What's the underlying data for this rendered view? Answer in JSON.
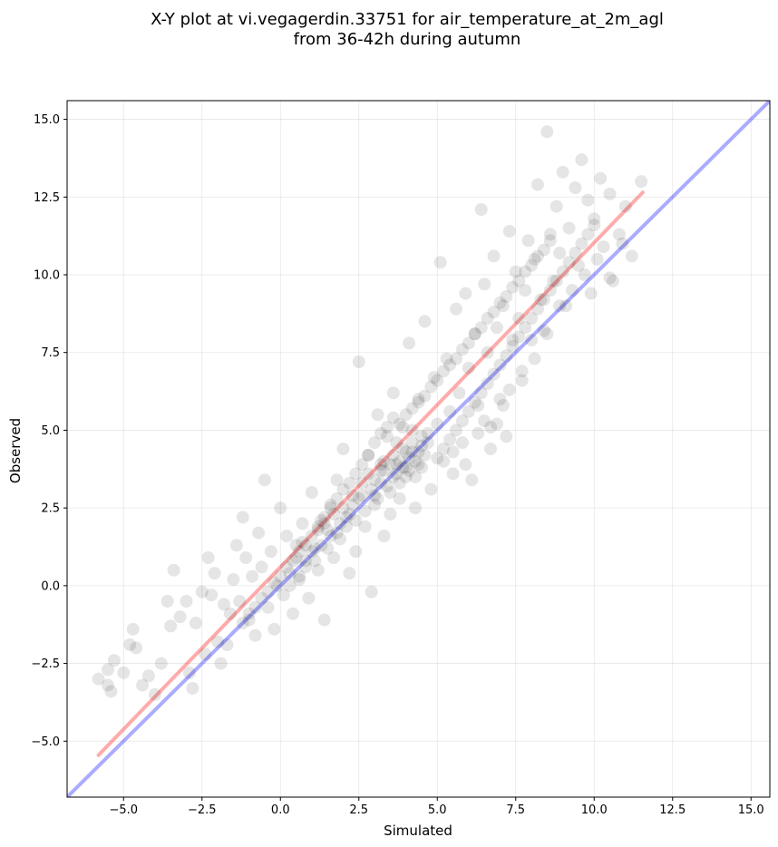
{
  "chart_data": {
    "type": "scatter",
    "title_lines": [
      "X-Y plot at vi.vegagerdin.33751 for air_temperature_at_2m_agl",
      "from 36-42h during autumn"
    ],
    "xlabel": "Simulated",
    "ylabel": "Observed",
    "xlim": [
      -6.8,
      15.6
    ],
    "ylim": [
      -6.8,
      15.6
    ],
    "xticks": [
      -5.0,
      -2.5,
      0.0,
      2.5,
      5.0,
      7.5,
      10.0,
      12.5,
      15.0
    ],
    "yticks": [
      -5.0,
      -2.5,
      0.0,
      2.5,
      5.0,
      7.5,
      10.0,
      12.5,
      15.0
    ],
    "xtick_labels": [
      "−5.0",
      "−2.5",
      "0.0",
      "2.5",
      "5.0",
      "7.5",
      "10.0",
      "12.5",
      "15.0"
    ],
    "ytick_labels": [
      "−5.0",
      "−2.5",
      "0.0",
      "2.5",
      "5.0",
      "7.5",
      "10.0",
      "12.5",
      "15.0"
    ],
    "grid": true,
    "point_color": "#000000",
    "point_alpha": 0.1,
    "lines": [
      {
        "role": "identity",
        "color": "#0000ff",
        "alpha": 0.33,
        "x": [
          -6.8,
          15.6
        ],
        "y": [
          -6.8,
          15.6
        ]
      },
      {
        "role": "fit",
        "color": "#ff0000",
        "alpha": 0.33,
        "x": [
          -5.8,
          11.55
        ],
        "y": [
          -5.45,
          12.65
        ]
      }
    ],
    "points": [
      [
        -5.8,
        -3.0
      ],
      [
        -5.5,
        -3.2
      ],
      [
        -5.4,
        -3.4
      ],
      [
        -5.3,
        -2.4
      ],
      [
        -5.5,
        -2.7
      ],
      [
        -5.0,
        -2.8
      ],
      [
        -4.8,
        -1.9
      ],
      [
        -4.7,
        -1.4
      ],
      [
        -4.6,
        -2.0
      ],
      [
        -4.4,
        -3.2
      ],
      [
        -4.2,
        -2.9
      ],
      [
        -4.0,
        -3.5
      ],
      [
        -3.8,
        -2.5
      ],
      [
        -3.6,
        -0.5
      ],
      [
        -3.5,
        -1.3
      ],
      [
        -3.4,
        0.5
      ],
      [
        -3.2,
        -1.0
      ],
      [
        -3.0,
        -0.5
      ],
      [
        -2.9,
        -2.8
      ],
      [
        -2.8,
        -3.3
      ],
      [
        -2.7,
        -1.2
      ],
      [
        -2.5,
        -0.2
      ],
      [
        -2.4,
        -2.2
      ],
      [
        -2.3,
        0.9
      ],
      [
        -2.2,
        -0.3
      ],
      [
        -2.1,
        0.4
      ],
      [
        -2.0,
        -1.8
      ],
      [
        -1.9,
        -2.5
      ],
      [
        -1.8,
        -0.6
      ],
      [
        -1.7,
        -1.9
      ],
      [
        -1.6,
        -0.9
      ],
      [
        -1.5,
        0.2
      ],
      [
        -1.4,
        1.3
      ],
      [
        -1.3,
        -0.5
      ],
      [
        -1.2,
        2.2
      ],
      [
        -1.1,
        0.9
      ],
      [
        -1.0,
        -1.1
      ],
      [
        -0.9,
        0.3
      ],
      [
        -0.8,
        -1.6
      ],
      [
        -0.7,
        1.7
      ],
      [
        -0.6,
        0.6
      ],
      [
        -0.5,
        3.4
      ],
      [
        -0.4,
        -0.7
      ],
      [
        -0.3,
        1.1
      ],
      [
        -0.2,
        -1.4
      ],
      [
        -0.1,
        0.0
      ],
      [
        0.0,
        2.5
      ],
      [
        0.1,
        -0.3
      ],
      [
        0.2,
        1.6
      ],
      [
        0.3,
        0.4
      ],
      [
        0.4,
        -0.9
      ],
      [
        0.5,
        1.3
      ],
      [
        0.6,
        0.2
      ],
      [
        0.7,
        2.0
      ],
      [
        0.8,
        0.8
      ],
      [
        0.9,
        -0.4
      ],
      [
        1.0,
        3.0
      ],
      [
        1.1,
        1.2
      ],
      [
        1.2,
        0.5
      ],
      [
        1.3,
        2.1
      ],
      [
        1.4,
        -1.1
      ],
      [
        1.5,
        1.8
      ],
      [
        1.6,
        2.6
      ],
      [
        1.7,
        0.9
      ],
      [
        1.8,
        3.4
      ],
      [
        1.9,
        1.5
      ],
      [
        2.0,
        4.4
      ],
      [
        2.1,
        2.2
      ],
      [
        2.2,
        0.4
      ],
      [
        2.3,
        2.9
      ],
      [
        2.4,
        1.1
      ],
      [
        2.5,
        7.2
      ],
      [
        2.6,
        3.3
      ],
      [
        2.7,
        1.9
      ],
      [
        2.8,
        4.2
      ],
      [
        2.9,
        -0.2
      ],
      [
        3.0,
        2.6
      ],
      [
        3.1,
        5.5
      ],
      [
        3.2,
        3.7
      ],
      [
        3.3,
        1.6
      ],
      [
        3.4,
        4.8
      ],
      [
        3.5,
        2.3
      ],
      [
        3.6,
        6.2
      ],
      [
        3.7,
        3.9
      ],
      [
        3.8,
        2.8
      ],
      [
        3.9,
        5.1
      ],
      [
        4.0,
        3.5
      ],
      [
        4.1,
        7.8
      ],
      [
        4.2,
        4.3
      ],
      [
        4.3,
        2.5
      ],
      [
        4.4,
        6.0
      ],
      [
        4.5,
        3.8
      ],
      [
        4.6,
        8.5
      ],
      [
        4.7,
        4.9
      ],
      [
        4.8,
        3.1
      ],
      [
        4.9,
        6.7
      ],
      [
        5.0,
        5.2
      ],
      [
        5.1,
        10.4
      ],
      [
        5.2,
        4.0
      ],
      [
        5.3,
        7.3
      ],
      [
        5.4,
        5.6
      ],
      [
        5.5,
        3.6
      ],
      [
        5.6,
        8.9
      ],
      [
        5.7,
        6.2
      ],
      [
        5.8,
        4.6
      ],
      [
        5.9,
        9.4
      ],
      [
        6.0,
        7.0
      ],
      [
        6.1,
        3.4
      ],
      [
        6.2,
        8.1
      ],
      [
        6.3,
        5.8
      ],
      [
        6.4,
        12.1
      ],
      [
        6.5,
        9.7
      ],
      [
        6.6,
        7.5
      ],
      [
        6.7,
        5.1
      ],
      [
        6.8,
        10.6
      ],
      [
        6.9,
        8.3
      ],
      [
        7.0,
        6.0
      ],
      [
        7.1,
        9.0
      ],
      [
        7.2,
        4.8
      ],
      [
        7.3,
        11.4
      ],
      [
        7.4,
        7.9
      ],
      [
        7.5,
        10.1
      ],
      [
        7.6,
        8.6
      ],
      [
        7.7,
        6.6
      ],
      [
        7.8,
        9.5
      ],
      [
        7.9,
        11.1
      ],
      [
        8.0,
        7.9
      ],
      [
        8.1,
        10.5
      ],
      [
        8.2,
        12.9
      ],
      [
        8.3,
        9.2
      ],
      [
        8.4,
        8.2
      ],
      [
        8.5,
        14.6
      ],
      [
        8.6,
        11.3
      ],
      [
        8.7,
        9.8
      ],
      [
        8.8,
        12.2
      ],
      [
        8.9,
        10.7
      ],
      [
        9.0,
        13.3
      ],
      [
        9.1,
        9.0
      ],
      [
        9.2,
        11.5
      ],
      [
        9.4,
        12.8
      ],
      [
        9.5,
        10.3
      ],
      [
        9.6,
        13.7
      ],
      [
        9.8,
        12.4
      ],
      [
        9.9,
        9.4
      ],
      [
        10.0,
        11.8
      ],
      [
        10.2,
        13.1
      ],
      [
        10.3,
        10.9
      ],
      [
        10.5,
        12.6
      ],
      [
        10.6,
        9.8
      ],
      [
        10.8,
        11.3
      ],
      [
        11.0,
        12.2
      ],
      [
        11.2,
        10.6
      ],
      [
        11.5,
        13.0
      ],
      [
        0.5,
        0.9
      ],
      [
        0.7,
        1.4
      ],
      [
        1.0,
        1.1
      ],
      [
        1.2,
        1.8
      ],
      [
        1.4,
        2.0
      ],
      [
        1.5,
        1.2
      ],
      [
        1.7,
        2.3
      ],
      [
        1.8,
        1.7
      ],
      [
        2.0,
        2.5
      ],
      [
        2.1,
        1.9
      ],
      [
        2.3,
        2.6
      ],
      [
        2.4,
        2.1
      ],
      [
        2.6,
        2.9
      ],
      [
        2.7,
        2.4
      ],
      [
        2.9,
        3.1
      ],
      [
        3.0,
        3.4
      ],
      [
        3.1,
        2.8
      ],
      [
        3.2,
        3.3
      ],
      [
        3.3,
        3.7
      ],
      [
        3.4,
        3.2
      ],
      [
        3.5,
        3.9
      ],
      [
        3.6,
        4.2
      ],
      [
        3.7,
        3.6
      ],
      [
        3.8,
        4.0
      ],
      [
        3.9,
        4.4
      ],
      [
        4.0,
        3.8
      ],
      [
        4.1,
        4.1
      ],
      [
        4.2,
        4.6
      ],
      [
        4.3,
        4.0
      ],
      [
        4.4,
        4.3
      ],
      [
        4.5,
        4.8
      ],
      [
        4.6,
        4.2
      ],
      [
        4.7,
        4.6
      ],
      [
        3.5,
        3.0
      ],
      [
        3.6,
        3.5
      ],
      [
        3.8,
        3.3
      ],
      [
        3.9,
        3.8
      ],
      [
        4.0,
        4.3
      ],
      [
        4.1,
        3.7
      ],
      [
        4.3,
        3.5
      ],
      [
        4.4,
        3.9
      ],
      [
        3.3,
        4.0
      ],
      [
        3.7,
        4.6
      ],
      [
        4.2,
        5.0
      ],
      [
        4.5,
        4.5
      ],
      [
        2.8,
        3.6
      ],
      [
        3.0,
        2.9
      ],
      [
        3.2,
        3.9
      ],
      [
        2.5,
        2.8
      ],
      [
        2.2,
        2.3
      ],
      [
        1.9,
        2.0
      ],
      [
        1.6,
        1.6
      ],
      [
        1.3,
        1.3
      ],
      [
        1.1,
        0.8
      ],
      [
        0.8,
        0.6
      ],
      [
        0.6,
        0.3
      ],
      [
        0.3,
        0.0
      ],
      [
        3.8,
        5.2
      ],
      [
        4.0,
        5.5
      ],
      [
        4.2,
        5.7
      ],
      [
        4.4,
        5.9
      ],
      [
        4.6,
        6.1
      ],
      [
        4.8,
        6.4
      ],
      [
        5.0,
        6.6
      ],
      [
        5.2,
        6.9
      ],
      [
        5.4,
        7.1
      ],
      [
        5.6,
        7.3
      ],
      [
        5.8,
        7.6
      ],
      [
        6.0,
        7.8
      ],
      [
        6.2,
        8.1
      ],
      [
        6.4,
        8.3
      ],
      [
        6.6,
        8.6
      ],
      [
        6.8,
        8.8
      ],
      [
        7.0,
        9.1
      ],
      [
        7.2,
        9.3
      ],
      [
        7.4,
        9.6
      ],
      [
        7.6,
        9.8
      ],
      [
        7.8,
        10.1
      ],
      [
        8.0,
        10.3
      ],
      [
        8.2,
        10.6
      ],
      [
        8.4,
        10.8
      ],
      [
        8.6,
        11.1
      ],
      [
        3.0,
        4.6
      ],
      [
        3.2,
        4.9
      ],
      [
        3.4,
        5.1
      ],
      [
        3.6,
        5.4
      ],
      [
        2.8,
        4.2
      ],
      [
        2.6,
        3.9
      ],
      [
        2.4,
        3.6
      ],
      [
        2.2,
        3.3
      ],
      [
        2.0,
        3.1
      ],
      [
        1.8,
        2.8
      ],
      [
        1.6,
        2.5
      ],
      [
        1.4,
        2.2
      ],
      [
        1.2,
        1.9
      ],
      [
        1.0,
        1.6
      ],
      [
        0.8,
        1.3
      ],
      [
        0.6,
        1.1
      ],
      [
        0.4,
        0.8
      ],
      [
        0.2,
        0.6
      ],
      [
        0.0,
        0.3
      ],
      [
        -0.2,
        0.1
      ],
      [
        -0.4,
        -0.2
      ],
      [
        -0.6,
        -0.4
      ],
      [
        -0.8,
        -0.7
      ],
      [
        -1.0,
        -0.9
      ],
      [
        -1.2,
        -1.2
      ],
      [
        5.0,
        4.1
      ],
      [
        5.2,
        4.4
      ],
      [
        5.4,
        4.7
      ],
      [
        5.6,
        5.0
      ],
      [
        5.8,
        5.3
      ],
      [
        6.0,
        5.6
      ],
      [
        6.2,
        5.9
      ],
      [
        6.4,
        6.2
      ],
      [
        6.6,
        6.5
      ],
      [
        6.8,
        6.8
      ],
      [
        7.0,
        7.1
      ],
      [
        7.2,
        7.4
      ],
      [
        7.4,
        7.7
      ],
      [
        7.6,
        8.0
      ],
      [
        7.8,
        8.3
      ],
      [
        8.0,
        8.6
      ],
      [
        8.2,
        8.9
      ],
      [
        8.4,
        9.2
      ],
      [
        8.6,
        9.5
      ],
      [
        8.8,
        9.8
      ],
      [
        9.0,
        10.1
      ],
      [
        9.2,
        10.4
      ],
      [
        9.4,
        10.7
      ],
      [
        9.6,
        11.0
      ],
      [
        9.8,
        11.3
      ],
      [
        10.0,
        11.6
      ],
      [
        6.5,
        5.3
      ],
      [
        6.9,
        5.2
      ],
      [
        6.3,
        4.9
      ],
      [
        6.7,
        4.4
      ],
      [
        5.9,
        3.9
      ],
      [
        5.5,
        4.3
      ],
      [
        7.1,
        5.8
      ],
      [
        7.3,
        6.3
      ],
      [
        7.7,
        6.9
      ],
      [
        8.1,
        7.3
      ],
      [
        8.5,
        8.1
      ],
      [
        8.9,
        9.0
      ],
      [
        9.3,
        9.5
      ],
      [
        9.7,
        10.0
      ],
      [
        10.1,
        10.5
      ],
      [
        10.5,
        9.9
      ],
      [
        10.9,
        11.0
      ]
    ]
  }
}
